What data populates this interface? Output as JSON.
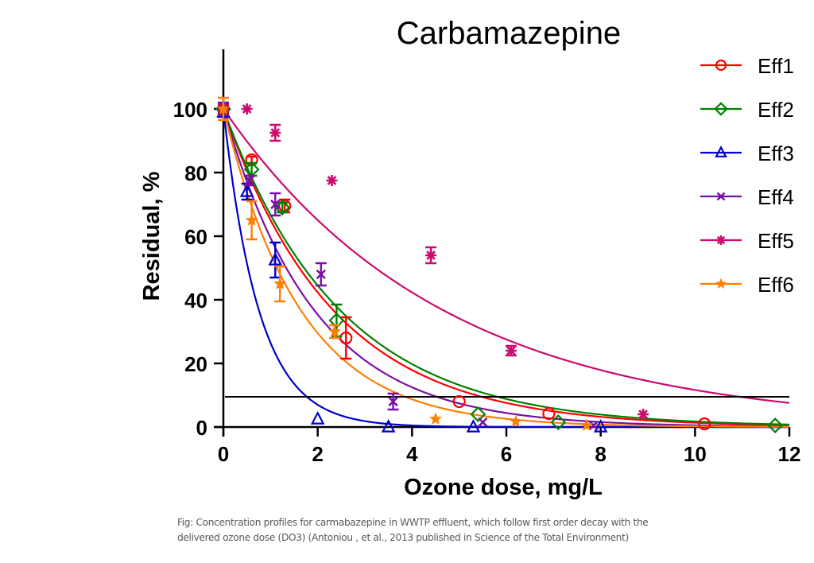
{
  "chart_data": {
    "type": "scatter",
    "title": "Carbamazepine",
    "xlabel": "Ozone dose, mg/L",
    "ylabel": "Residual, %",
    "xlim": [
      0,
      12
    ],
    "ylim": [
      0,
      115
    ],
    "xticks": [
      0,
      2,
      4,
      6,
      8,
      10,
      12
    ],
    "yticks": [
      0,
      20,
      40,
      60,
      80,
      100
    ],
    "grid": false,
    "legend_position": "top-right",
    "reference_line": {
      "y": 9.5,
      "color": "#000000"
    },
    "fit_model": "first-order decay: Residual = 100·exp(-k·dose)",
    "series": [
      {
        "name": "Eff1",
        "color": "#ff0000",
        "marker": "circle",
        "k": 0.43,
        "points": [
          {
            "x": 0,
            "y": 100,
            "err": 1.5
          },
          {
            "x": 0.6,
            "y": 84,
            "err": 1
          },
          {
            "x": 1.3,
            "y": 69.5,
            "err": 2
          },
          {
            "x": 2.6,
            "y": 28,
            "err": 6.5
          },
          {
            "x": 5.0,
            "y": 8,
            "err": 0
          },
          {
            "x": 6.9,
            "y": 4.2,
            "err": 0
          },
          {
            "x": 10.2,
            "y": 1,
            "err": 0
          }
        ]
      },
      {
        "name": "Eff2",
        "color": "#008000",
        "marker": "diamond",
        "k": 0.405,
        "points": [
          {
            "x": 0,
            "y": 100,
            "err": 1
          },
          {
            "x": 0.6,
            "y": 81,
            "err": 2
          },
          {
            "x": 1.25,
            "y": 69,
            "err": 1.5
          },
          {
            "x": 2.4,
            "y": 33.5,
            "err": 5
          },
          {
            "x": 5.4,
            "y": 4,
            "err": 0
          },
          {
            "x": 7.1,
            "y": 1.5,
            "err": 0
          },
          {
            "x": 11.7,
            "y": 0.5,
            "err": 0
          }
        ]
      },
      {
        "name": "Eff3",
        "color": "#0000cc",
        "marker": "triangle",
        "k": 1.33,
        "points": [
          {
            "x": 0,
            "y": 99,
            "err": 1.5
          },
          {
            "x": 0.5,
            "y": 74,
            "err": 2.5
          },
          {
            "x": 1.1,
            "y": 52.5,
            "err": 5.5
          },
          {
            "x": 2.0,
            "y": 2.5,
            "err": 0
          },
          {
            "x": 3.5,
            "y": 0,
            "err": 0
          },
          {
            "x": 5.3,
            "y": 0,
            "err": 0
          },
          {
            "x": 8.0,
            "y": 0,
            "err": 0
          }
        ]
      },
      {
        "name": "Eff4",
        "color": "#7a0fa8",
        "marker": "x",
        "k": 0.52,
        "points": [
          {
            "x": 0,
            "y": 100,
            "err": 2
          },
          {
            "x": 0.55,
            "y": 77.5,
            "err": 1.5
          },
          {
            "x": 1.1,
            "y": 70,
            "err": 3.5
          },
          {
            "x": 2.07,
            "y": 48,
            "err": 3.5
          },
          {
            "x": 3.6,
            "y": 8,
            "err": 2.5
          },
          {
            "x": 5.5,
            "y": 1.5,
            "err": 0
          },
          {
            "x": 7.85,
            "y": 0.5,
            "err": 0
          }
        ]
      },
      {
        "name": "Eff5",
        "color": "#cc0a6e",
        "marker": "asterisk",
        "k": 0.215,
        "points": [
          {
            "x": 0,
            "y": 100,
            "err": 1
          },
          {
            "x": 0.5,
            "y": 100,
            "err": 0
          },
          {
            "x": 1.1,
            "y": 92.5,
            "err": 2.5
          },
          {
            "x": 2.3,
            "y": 77.5,
            "err": 0
          },
          {
            "x": 4.4,
            "y": 54,
            "err": 2.5
          },
          {
            "x": 6.1,
            "y": 24,
            "err": 1.5
          },
          {
            "x": 8.9,
            "y": 4,
            "err": 0
          }
        ]
      },
      {
        "name": "Eff6",
        "color": "#ff7f00",
        "marker": "star",
        "k": 0.61,
        "points": [
          {
            "x": 0,
            "y": 100,
            "err": 3.5
          },
          {
            "x": 0.6,
            "y": 65,
            "err": 6
          },
          {
            "x": 1.2,
            "y": 45,
            "err": 5.5
          },
          {
            "x": 2.36,
            "y": 30,
            "err": 2
          },
          {
            "x": 4.5,
            "y": 2.5,
            "err": 0
          },
          {
            "x": 6.2,
            "y": 1.7,
            "err": 0
          },
          {
            "x": 7.7,
            "y": 0.5,
            "err": 0
          }
        ]
      }
    ]
  },
  "caption": {
    "line1": "Fig: Concentration profiles for carmabazepine in WWTP effluent, which follow first order decay with the",
    "line2": "delivered ozone dose (DO3) (Antoniou , et al., 2013 published in Science of the Total Environment)"
  }
}
